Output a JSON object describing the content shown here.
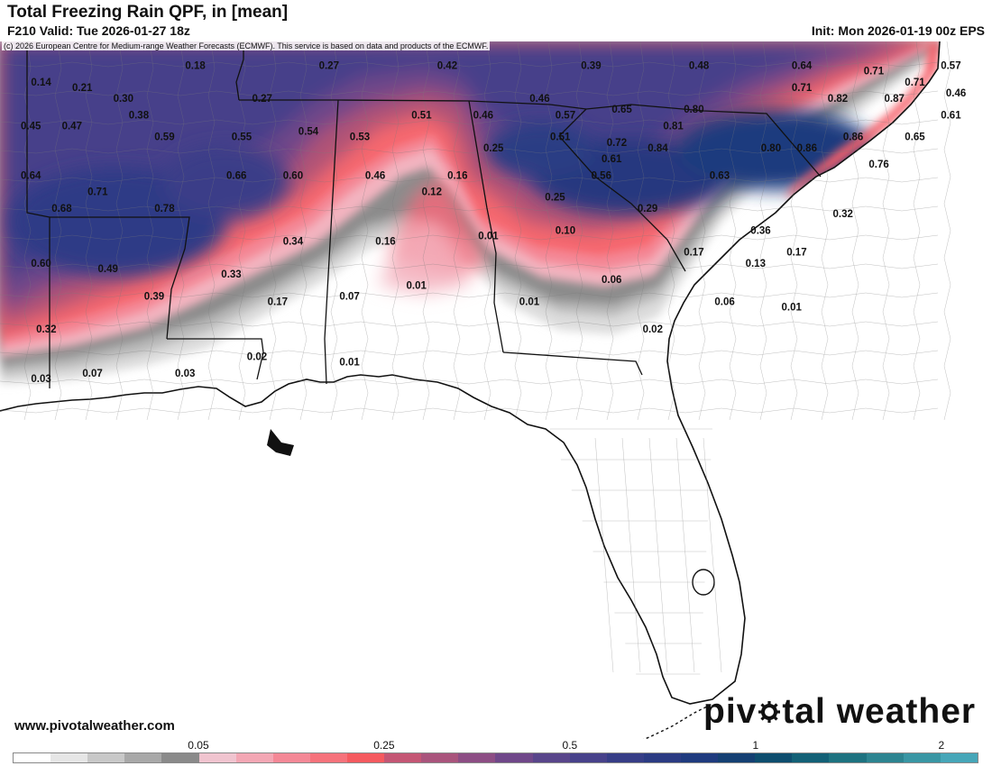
{
  "header": {
    "title": "Total Freezing Rain QPF, in [mean]",
    "valid": "F210 Valid: Tue 2026-01-27 18z",
    "init": "Init: Mon 2026-01-19 00z EPS"
  },
  "copyright": "(c) 2026 European Centre for Medium-range Weather Forecasts (ECMWF). This service is based on data and products of the ECMWF.",
  "footer": {
    "site": "www.pivotalweather.com",
    "logo_left": "piv",
    "logo_right": "tal weather"
  },
  "map_data": {
    "region": "Southeastern United States",
    "variable": "Total freezing rain QPF (mean)",
    "units": "in",
    "labels": [
      {
        "v": "0.14",
        "lon": -93.6,
        "lat": 35.9
      },
      {
        "v": "0.21",
        "lon": -92.8,
        "lat": 35.8
      },
      {
        "v": "0.18",
        "lon": -90.6,
        "lat": 36.2
      },
      {
        "v": "0.27",
        "lon": -88.0,
        "lat": 36.2
      },
      {
        "v": "0.42",
        "lon": -85.7,
        "lat": 36.2
      },
      {
        "v": "0.39",
        "lon": -82.9,
        "lat": 36.2
      },
      {
        "v": "0.48",
        "lon": -80.8,
        "lat": 36.2
      },
      {
        "v": "0.64",
        "lon": -78.8,
        "lat": 36.2
      },
      {
        "v": "0.71",
        "lon": -77.4,
        "lat": 36.1
      },
      {
        "v": "0.57",
        "lon": -75.9,
        "lat": 36.2
      },
      {
        "v": "0.71",
        "lon": -76.6,
        "lat": 35.9
      },
      {
        "v": "0.71",
        "lon": -78.8,
        "lat": 35.8
      },
      {
        "v": "0.30",
        "lon": -92.0,
        "lat": 35.6
      },
      {
        "v": "0.27",
        "lon": -89.3,
        "lat": 35.6
      },
      {
        "v": "0.46",
        "lon": -83.9,
        "lat": 35.6
      },
      {
        "v": "0.82",
        "lon": -78.1,
        "lat": 35.6
      },
      {
        "v": "0.87",
        "lon": -77.0,
        "lat": 35.6
      },
      {
        "v": "0.46",
        "lon": -75.8,
        "lat": 35.7
      },
      {
        "v": "0.38",
        "lon": -91.7,
        "lat": 35.3
      },
      {
        "v": "0.51",
        "lon": -86.2,
        "lat": 35.3
      },
      {
        "v": "0.46",
        "lon": -85.0,
        "lat": 35.3
      },
      {
        "v": "0.57",
        "lon": -83.4,
        "lat": 35.3
      },
      {
        "v": "0.65",
        "lon": -82.3,
        "lat": 35.4
      },
      {
        "v": "0.80",
        "lon": -80.9,
        "lat": 35.4
      },
      {
        "v": "0.61",
        "lon": -75.9,
        "lat": 35.3
      },
      {
        "v": "0.45",
        "lon": -93.8,
        "lat": 35.1
      },
      {
        "v": "0.47",
        "lon": -93.0,
        "lat": 35.1
      },
      {
        "v": "0.81",
        "lon": -81.3,
        "lat": 35.1
      },
      {
        "v": "0.59",
        "lon": -91.2,
        "lat": 34.9
      },
      {
        "v": "0.55",
        "lon": -89.7,
        "lat": 34.9
      },
      {
        "v": "0.54",
        "lon": -88.4,
        "lat": 35.0
      },
      {
        "v": "0.53",
        "lon": -87.4,
        "lat": 34.9
      },
      {
        "v": "0.51",
        "lon": -83.5,
        "lat": 34.9
      },
      {
        "v": "0.72",
        "lon": -82.4,
        "lat": 34.8
      },
      {
        "v": "0.86",
        "lon": -77.8,
        "lat": 34.9
      },
      {
        "v": "0.65",
        "lon": -76.6,
        "lat": 34.9
      },
      {
        "v": "0.25",
        "lon": -84.8,
        "lat": 34.7
      },
      {
        "v": "0.84",
        "lon": -81.6,
        "lat": 34.7
      },
      {
        "v": "0.80",
        "lon": -79.4,
        "lat": 34.7
      },
      {
        "v": "0.86",
        "lon": -78.7,
        "lat": 34.7
      },
      {
        "v": "0.61",
        "lon": -82.5,
        "lat": 34.5
      },
      {
        "v": "0.76",
        "lon": -77.3,
        "lat": 34.4
      },
      {
        "v": "0.64",
        "lon": -93.8,
        "lat": 34.2
      },
      {
        "v": "0.66",
        "lon": -89.8,
        "lat": 34.2
      },
      {
        "v": "0.60",
        "lon": -88.7,
        "lat": 34.2
      },
      {
        "v": "0.46",
        "lon": -87.1,
        "lat": 34.2
      },
      {
        "v": "0.16",
        "lon": -85.5,
        "lat": 34.2
      },
      {
        "v": "0.56",
        "lon": -82.7,
        "lat": 34.2
      },
      {
        "v": "0.63",
        "lon": -80.4,
        "lat": 34.2
      },
      {
        "v": "0.71",
        "lon": -92.5,
        "lat": 33.9
      },
      {
        "v": "0.12",
        "lon": -86.0,
        "lat": 33.9
      },
      {
        "v": "0.25",
        "lon": -83.6,
        "lat": 33.8
      },
      {
        "v": "0.78",
        "lon": -91.2,
        "lat": 33.6
      },
      {
        "v": "0.68",
        "lon": -93.2,
        "lat": 33.6
      },
      {
        "v": "0.29",
        "lon": -81.8,
        "lat": 33.6
      },
      {
        "v": "0.32",
        "lon": -78.0,
        "lat": 33.5
      },
      {
        "v": "0.36",
        "lon": -79.6,
        "lat": 33.2
      },
      {
        "v": "0.10",
        "lon": -83.4,
        "lat": 33.2
      },
      {
        "v": "0.01",
        "lon": -84.9,
        "lat": 33.1
      },
      {
        "v": "0.34",
        "lon": -88.7,
        "lat": 33.0
      },
      {
        "v": "0.16",
        "lon": -86.9,
        "lat": 33.0
      },
      {
        "v": "0.17",
        "lon": -80.9,
        "lat": 32.8
      },
      {
        "v": "0.13",
        "lon": -79.7,
        "lat": 32.6
      },
      {
        "v": "0.17",
        "lon": -78.9,
        "lat": 32.8
      },
      {
        "v": "0.60",
        "lon": -93.6,
        "lat": 32.6
      },
      {
        "v": "0.49",
        "lon": -92.3,
        "lat": 32.5
      },
      {
        "v": "0.33",
        "lon": -89.9,
        "lat": 32.4
      },
      {
        "v": "0.06",
        "lon": -82.5,
        "lat": 32.3
      },
      {
        "v": "0.01",
        "lon": -86.3,
        "lat": 32.2
      },
      {
        "v": "0.39",
        "lon": -91.4,
        "lat": 32.0
      },
      {
        "v": "0.07",
        "lon": -87.6,
        "lat": 32.0
      },
      {
        "v": "0.17",
        "lon": -89.0,
        "lat": 31.9
      },
      {
        "v": "0.01",
        "lon": -84.1,
        "lat": 31.9
      },
      {
        "v": "0.06",
        "lon": -80.3,
        "lat": 31.9
      },
      {
        "v": "0.01",
        "lon": -79.0,
        "lat": 31.8
      },
      {
        "v": "0.32",
        "lon": -93.5,
        "lat": 31.4
      },
      {
        "v": "0.02",
        "lon": -81.7,
        "lat": 31.4
      },
      {
        "v": "0.02",
        "lon": -89.4,
        "lat": 30.9
      },
      {
        "v": "0.01",
        "lon": -87.6,
        "lat": 30.8
      },
      {
        "v": "0.07",
        "lon": -92.6,
        "lat": 30.6
      },
      {
        "v": "0.03",
        "lon": -90.8,
        "lat": 30.6
      },
      {
        "v": "0.03",
        "lon": -93.6,
        "lat": 30.5
      }
    ]
  },
  "colorbar": {
    "tick_labels": [
      {
        "label": "0.05",
        "index": 5
      },
      {
        "label": "0.25",
        "index": 10
      },
      {
        "label": "0.5",
        "index": 15
      },
      {
        "label": "1",
        "index": 20
      },
      {
        "label": "2",
        "index": 25
      }
    ],
    "colors": [
      "#ffffff",
      "#e6e6e6",
      "#c8c8c8",
      "#a8a8a8",
      "#8a8a8a",
      "#f0c4cf",
      "#f3a7b4",
      "#f48896",
      "#f6727b",
      "#f55a5f",
      "#c45674",
      "#a9547c",
      "#8c4d84",
      "#6f4789",
      "#58458a",
      "#47418a",
      "#363d86",
      "#2a3a82",
      "#1e3a7e",
      "#143f72",
      "#0d4d6e",
      "#126076",
      "#1d7280",
      "#2c8490",
      "#3996a4",
      "#46a6b8"
    ]
  },
  "style": {
    "ocean": "#ffffff",
    "land": "#ffffff",
    "state_border": "#111111",
    "county_border": "#7a7a7a"
  }
}
